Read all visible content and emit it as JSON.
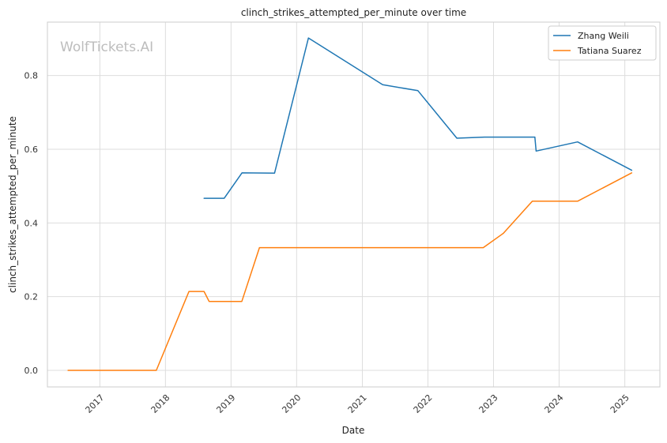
{
  "chart_data": {
    "type": "line",
    "title": "clinch_strikes_attempted_per_minute over time",
    "xlabel": "Date",
    "ylabel": "clinch_strikes_attempted_per_minute",
    "xlim": [
      "2016-03-15",
      "2025-07-15"
    ],
    "ylim": [
      -0.045,
      0.945
    ],
    "x_ticks": [
      "2017",
      "2018",
      "2019",
      "2020",
      "2021",
      "2022",
      "2023",
      "2024",
      "2025"
    ],
    "y_ticks": [
      "0.0",
      "0.2",
      "0.4",
      "0.6",
      "0.8"
    ],
    "grid": true,
    "legend_position": "top-right",
    "watermark": "WolfTickets.AI",
    "series": [
      {
        "name": "Zhang Weili",
        "color": "#1f77b4",
        "points": [
          [
            "2018-08-04",
            0.467
          ],
          [
            "2018-11-24",
            0.467
          ],
          [
            "2019-03-03",
            0.536
          ],
          [
            "2019-08-31",
            0.535
          ],
          [
            "2020-03-07",
            0.902
          ],
          [
            "2021-04-24",
            0.775
          ],
          [
            "2021-11-06",
            0.759
          ],
          [
            "2022-06-11",
            0.63
          ],
          [
            "2022-11-12",
            0.633
          ],
          [
            "2023-08-19",
            0.633
          ],
          [
            "2023-08-26",
            0.595
          ],
          [
            "2024-04-13",
            0.62
          ],
          [
            "2025-02-08",
            0.543
          ]
        ]
      },
      {
        "name": "Tatiana Suarez",
        "color": "#ff7f0e",
        "points": [
          [
            "2016-07-08",
            0.0
          ],
          [
            "2017-11-11",
            0.0
          ],
          [
            "2018-05-12",
            0.214
          ],
          [
            "2018-08-04",
            0.214
          ],
          [
            "2018-09-01",
            0.187
          ],
          [
            "2019-03-02",
            0.187
          ],
          [
            "2019-06-08",
            0.333
          ],
          [
            "2022-11-05",
            0.333
          ],
          [
            "2023-02-25",
            0.372
          ],
          [
            "2023-08-05",
            0.459
          ],
          [
            "2024-04-13",
            0.459
          ],
          [
            "2025-02-08",
            0.536
          ]
        ]
      }
    ]
  }
}
